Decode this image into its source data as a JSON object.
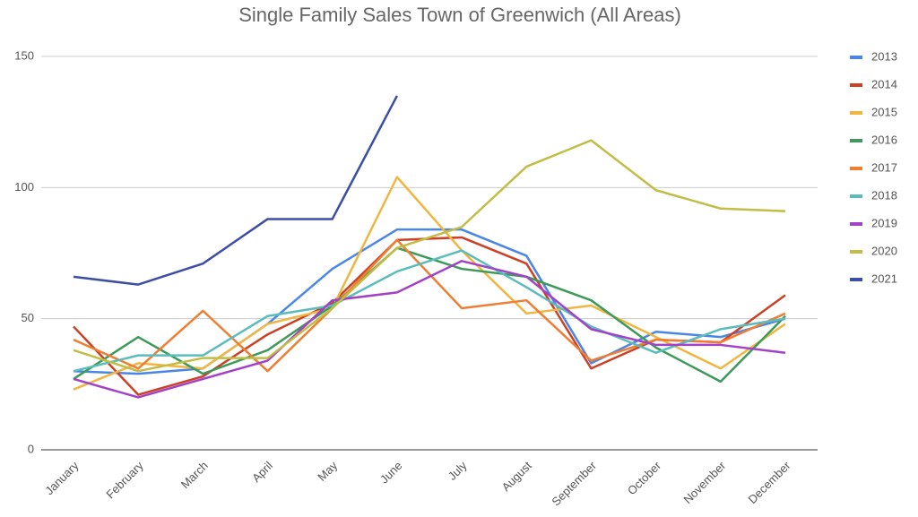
{
  "chart_data": {
    "type": "line",
    "title": "Single Family Sales Town of Greenwich (All Areas)",
    "categories": [
      "January",
      "February",
      "March",
      "April",
      "May",
      "June",
      "July",
      "August",
      "September",
      "October",
      "November",
      "December"
    ],
    "series": [
      {
        "name": "2013",
        "color": "#4a86e8",
        "values": [
          30,
          29,
          31,
          48,
          69,
          84,
          84,
          74,
          33,
          45,
          43,
          50
        ]
      },
      {
        "name": "2014",
        "color": "#cc4125",
        "values": [
          47,
          21,
          28,
          44,
          56,
          80,
          81,
          71,
          31,
          42,
          41,
          59
        ]
      },
      {
        "name": "2015",
        "color": "#f1b641",
        "values": [
          23,
          33,
          31,
          48,
          54,
          104,
          76,
          52,
          55,
          43,
          31,
          48
        ]
      },
      {
        "name": "2016",
        "color": "#3d9a58",
        "values": [
          27,
          43,
          29,
          38,
          55,
          77,
          69,
          66,
          57,
          39,
          26,
          51
        ]
      },
      {
        "name": "2017",
        "color": "#ef7e32",
        "values": [
          42,
          31,
          53,
          30,
          54,
          80,
          54,
          57,
          34,
          42,
          41,
          52
        ]
      },
      {
        "name": "2018",
        "color": "#5bbcbc",
        "values": [
          30,
          36,
          36,
          51,
          55,
          68,
          76,
          62,
          47,
          37,
          46,
          50
        ]
      },
      {
        "name": "2019",
        "color": "#a142c8",
        "values": [
          27,
          20,
          27,
          34,
          57,
          60,
          72,
          66,
          46,
          40,
          40,
          37
        ]
      },
      {
        "name": "2020",
        "color": "#c1bd45",
        "values": [
          38,
          30,
          35,
          35,
          54,
          77,
          85,
          108,
          118,
          99,
          92,
          91
        ]
      },
      {
        "name": "2021",
        "color": "#3c4ea6",
        "values": [
          66,
          63,
          71,
          88,
          88,
          135,
          null,
          null,
          null,
          null,
          null,
          null
        ]
      }
    ],
    "ylim": [
      0,
      150
    ],
    "yticks": [
      0,
      50,
      100,
      150
    ],
    "grid": true,
    "legend": "right"
  }
}
